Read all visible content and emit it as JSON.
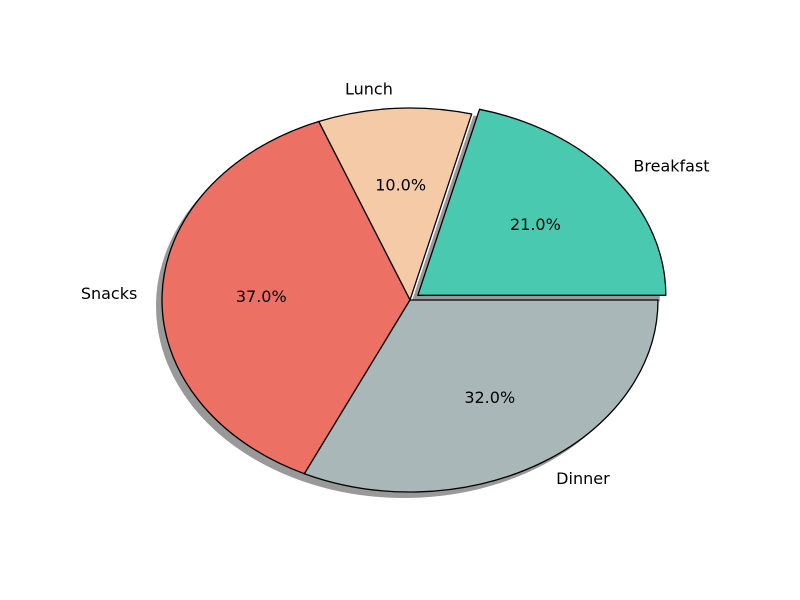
{
  "chart_data": {
    "type": "pie",
    "title": "",
    "slices": [
      {
        "label": "Breakfast",
        "value": 21.0,
        "pct_label": "21.0%",
        "color": "#48c9b0",
        "exploded": true
      },
      {
        "label": "Lunch",
        "value": 10.0,
        "pct_label": "10.0%",
        "color": "#f5cba7",
        "exploded": false
      },
      {
        "label": "Snacks",
        "value": 37.0,
        "pct_label": "37.0%",
        "color": "#ec7063",
        "exploded": false
      },
      {
        "label": "Dinner",
        "value": 32.0,
        "pct_label": "32.0%",
        "color": "#aab7b8",
        "exploded": false
      }
    ],
    "start_angle_deg": 0,
    "direction": "counterclockwise",
    "shadow": true,
    "edge_color": "#000000",
    "legend": "none"
  }
}
